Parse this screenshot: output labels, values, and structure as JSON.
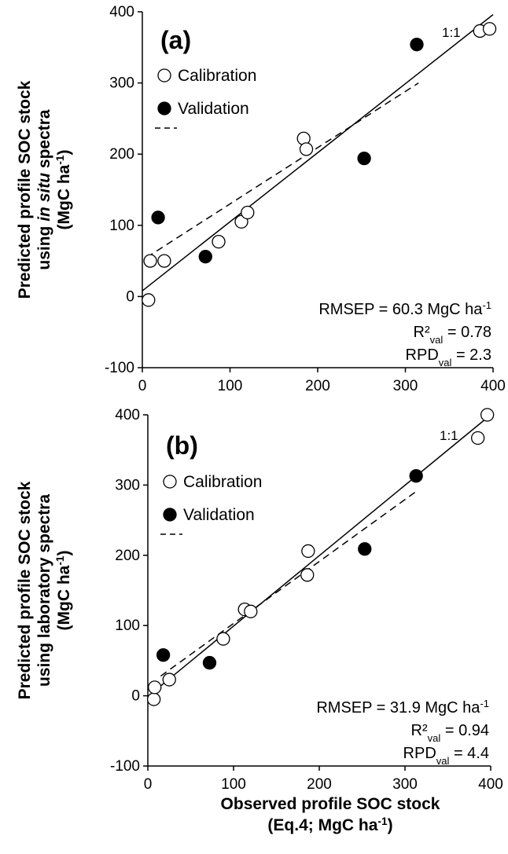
{
  "chart_data": [
    {
      "type": "scatter",
      "panel_label": "(a)",
      "ylabel_lines": [
        {
          "parts": [
            {
              "text": "Predicted profile  SOC stock"
            }
          ]
        },
        {
          "parts": [
            {
              "text": "using "
            },
            {
              "text": "in situ",
              "italic": true
            },
            {
              "text": " spectra"
            }
          ]
        },
        {
          "parts": [
            {
              "text": "(MgC ha"
            },
            {
              "text": "-1",
              "sup": true
            },
            {
              "text": ")"
            }
          ]
        }
      ],
      "xlim": [
        0,
        400
      ],
      "ylim": [
        -100,
        400
      ],
      "xticks": [
        "0",
        "100",
        "200",
        "300",
        "400"
      ],
      "yticks": [
        "-100",
        "0",
        "100",
        "200",
        "300",
        "400"
      ],
      "legend": {
        "calibration": "Calibration",
        "validation": "Validation"
      },
      "one_to_one_label": "1:1",
      "stats": [
        [
          {
            "text": "RMSEP = 60.3 MgC ha"
          },
          {
            "text": "-1",
            "sup": true
          }
        ],
        [
          {
            "text": "R²"
          },
          {
            "text": "val",
            "sub": true
          },
          {
            "text": " = 0.78"
          }
        ],
        [
          {
            "text": "RPD"
          },
          {
            "text": "val",
            "sub": true
          },
          {
            "text": " = 2.3"
          }
        ]
      ],
      "series": [
        {
          "role": "calibration",
          "x": [
            7,
            9,
            25,
            87,
            113,
            120,
            184,
            187,
            385,
            396
          ],
          "y": [
            -5,
            50,
            50,
            77,
            105,
            118,
            222,
            207,
            373,
            376
          ]
        },
        {
          "role": "validation",
          "x": [
            18,
            72,
            253,
            313
          ],
          "y": [
            111,
            56,
            194,
            354
          ]
        }
      ],
      "fit_line": {
        "x": [
          5,
          315
        ],
        "y": [
          55,
          300
        ],
        "style": "dashed"
      },
      "solid_line": {
        "x": [
          0,
          400
        ],
        "y": [
          8,
          396
        ]
      }
    },
    {
      "type": "scatter",
      "panel_label": "(b)",
      "ylabel_lines": [
        {
          "parts": [
            {
              "text": "Predicted profile  SOC stock"
            }
          ]
        },
        {
          "parts": [
            {
              "text": "using laboratory spectra"
            }
          ]
        },
        {
          "parts": [
            {
              "text": "(MgC ha"
            },
            {
              "text": "-1",
              "sup": true
            },
            {
              "text": ")"
            }
          ]
        }
      ],
      "xlabel_lines": [
        {
          "parts": [
            {
              "text": "Observed profile  SOC stock"
            }
          ]
        },
        {
          "parts": [
            {
              "text": "(Eq.4; MgC ha"
            },
            {
              "text": "-1",
              "sup": true
            },
            {
              "text": ")"
            }
          ]
        }
      ],
      "xlim": [
        0,
        400
      ],
      "ylim": [
        -100,
        400
      ],
      "xticks": [
        "0",
        "100",
        "200",
        "300",
        "400"
      ],
      "yticks": [
        "-100",
        "0",
        "100",
        "200",
        "300",
        "400"
      ],
      "legend": {
        "calibration": "Calibration",
        "validation": "Validation"
      },
      "one_to_one_label": "1:1",
      "stats": [
        [
          {
            "text": "RMSEP = 31.9 MgC ha"
          },
          {
            "text": "-1",
            "sup": true
          }
        ],
        [
          {
            "text": "R²"
          },
          {
            "text": "val",
            "sub": true
          },
          {
            "text": " = 0.94"
          }
        ],
        [
          {
            "text": "RPD"
          },
          {
            "text": "val",
            "sub": true
          },
          {
            "text": " = 4.4"
          }
        ]
      ],
      "series": [
        {
          "role": "calibration",
          "x": [
            7,
            8,
            25,
            88,
            113,
            120,
            186,
            187,
            385,
            396
          ],
          "y": [
            -5,
            12,
            23,
            81,
            123,
            120,
            172,
            206,
            367,
            400
          ]
        },
        {
          "role": "validation",
          "x": [
            18,
            72,
            253,
            313
          ],
          "y": [
            58,
            47,
            209,
            313
          ]
        }
      ],
      "fit_line": {
        "x": [
          15,
          312
        ],
        "y": [
          28,
          290
        ],
        "style": "dashed"
      },
      "solid_line": {
        "x": [
          5,
          400
        ],
        "y": [
          4,
          400
        ]
      }
    }
  ]
}
